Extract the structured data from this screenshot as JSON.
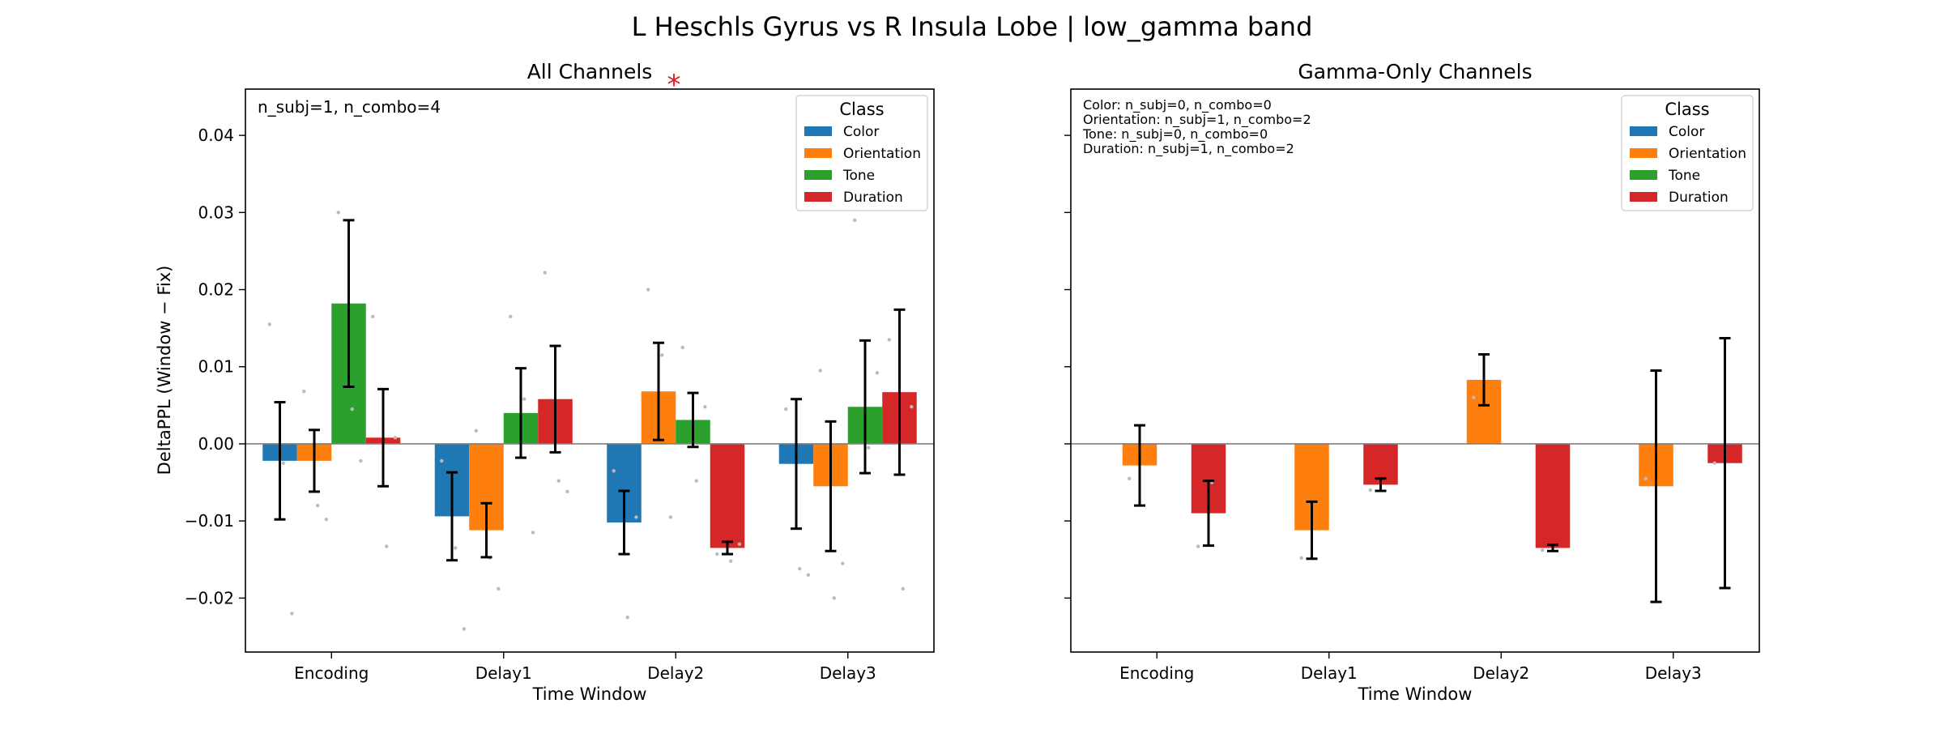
{
  "figure_title": "L Heschls Gyrus vs R Insula Lobe  |  low_gamma band",
  "significance_marker": "*",
  "colors": {
    "Color": "#1f77b4",
    "Orientation": "#ff7f0e",
    "Tone": "#2ca02c",
    "Duration": "#d62728",
    "significance": "#e31a1c",
    "points": "#bbbbbb"
  },
  "chart_data": [
    {
      "type": "bar",
      "title": "All Channels",
      "xlabel": "Time Window",
      "ylabel": "DeltaPPL (Window − Fix)",
      "categories": [
        "Encoding",
        "Delay1",
        "Delay2",
        "Delay3"
      ],
      "ylim": [
        -0.027,
        0.046
      ],
      "yticks": [
        -0.02,
        -0.01,
        0.0,
        0.01,
        0.02,
        0.03,
        0.04
      ],
      "ytick_labels": [
        "−0.02",
        "−0.01",
        "0.00",
        "0.01",
        "0.02",
        "0.03",
        "0.04"
      ],
      "annotations": [
        "n_subj=1, n_combo=4"
      ],
      "significant_categories": [
        "Delay2"
      ],
      "legend": {
        "title": "Class",
        "position": "top-right"
      },
      "series": [
        {
          "name": "Color",
          "values": [
            -0.0022,
            -0.0094,
            -0.0102,
            -0.0026
          ],
          "err": [
            0.0076,
            0.0057,
            0.0041,
            0.0084
          ],
          "points": [
            [
              0.0155,
              -0.0025,
              -0.022
            ],
            [
              -0.0022,
              -0.0135,
              -0.024
            ],
            [
              -0.0035,
              -0.0225,
              -0.0095
            ],
            [
              0.0045,
              -0.0162,
              -0.017
            ]
          ]
        },
        {
          "name": "Orientation",
          "values": [
            -0.0022,
            -0.0112,
            0.0068,
            -0.0055
          ],
          "err": [
            0.004,
            0.0035,
            0.0063,
            0.0084
          ],
          "points": [
            [
              0.0068,
              -0.008,
              -0.0098
            ],
            [
              0.0017,
              -0.0148,
              -0.0188
            ],
            [
              0.02,
              0.0115,
              -0.0095
            ],
            [
              0.0095,
              -0.02,
              -0.0155
            ]
          ]
        },
        {
          "name": "Tone",
          "values": [
            0.0182,
            0.004,
            0.0031,
            0.0048
          ],
          "err": [
            0.0108,
            0.0058,
            0.0035,
            0.0086
          ],
          "points": [
            [
              0.03,
              0.0045,
              -0.0022
            ],
            [
              0.0165,
              0.0058,
              -0.0115
            ],
            [
              0.0125,
              -0.0048,
              0.0048
            ],
            [
              0.029,
              -0.0005,
              0.0092
            ]
          ]
        },
        {
          "name": "Duration",
          "values": [
            0.0008,
            0.0058,
            -0.0135,
            0.0067
          ],
          "err": [
            0.0063,
            0.0069,
            0.0008,
            0.0107
          ],
          "points": [
            [
              0.0165,
              -0.0133,
              0.0008
            ],
            [
              0.0222,
              -0.0048,
              -0.0062
            ],
            [
              -0.0143,
              -0.0152,
              -0.013
            ],
            [
              0.0135,
              -0.0188,
              0.0048
            ]
          ]
        }
      ]
    },
    {
      "type": "bar",
      "title": "Gamma-Only Channels",
      "xlabel": "Time Window",
      "ylabel": "",
      "categories": [
        "Encoding",
        "Delay1",
        "Delay2",
        "Delay3"
      ],
      "ylim": [
        -0.027,
        0.046
      ],
      "yticks": [
        -0.02,
        -0.01,
        0.0,
        0.01,
        0.02,
        0.03,
        0.04
      ],
      "annotations": [
        "Color: n_subj=0, n_combo=0",
        "Orientation: n_subj=1, n_combo=2",
        "Tone: n_subj=0, n_combo=0",
        "Duration: n_subj=1, n_combo=2"
      ],
      "legend": {
        "title": "Class",
        "position": "top-right"
      },
      "series": [
        {
          "name": "Color",
          "values": [
            null,
            null,
            null,
            null
          ],
          "err": [
            null,
            null,
            null,
            null
          ],
          "points": [
            [],
            [],
            [],
            []
          ]
        },
        {
          "name": "Orientation",
          "values": [
            -0.0028,
            -0.0112,
            0.0083,
            -0.0055
          ],
          "err": [
            0.0052,
            0.0037,
            0.0033,
            0.015
          ],
          "points": [
            [
              -0.0045
            ],
            [
              -0.0148
            ],
            [
              0.006
            ],
            [
              -0.0045
            ]
          ]
        },
        {
          "name": "Tone",
          "values": [
            null,
            null,
            null,
            null
          ],
          "err": [
            null,
            null,
            null,
            null
          ],
          "points": [
            [],
            [],
            [],
            []
          ]
        },
        {
          "name": "Duration",
          "values": [
            -0.009,
            -0.0053,
            -0.0135,
            -0.0025
          ],
          "err": [
            0.0042,
            0.0008,
            0.0004,
            0.0162
          ],
          "points": [
            [
              -0.0133,
              -0.005
            ],
            [
              -0.006
            ],
            [
              -0.0138
            ],
            [
              -0.0025
            ]
          ]
        }
      ]
    }
  ]
}
